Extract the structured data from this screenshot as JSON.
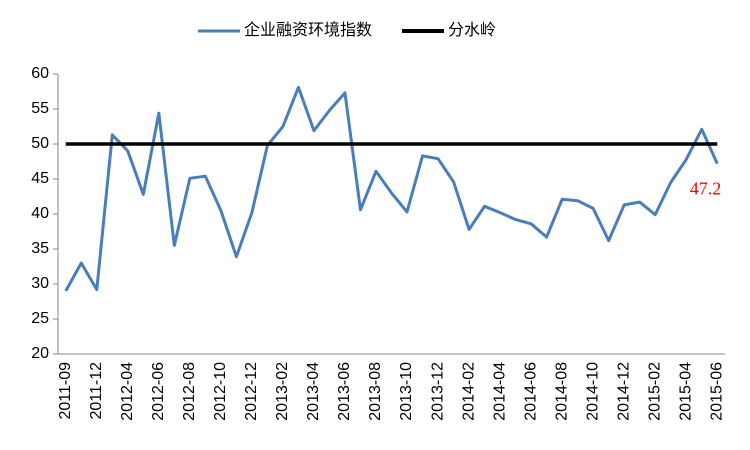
{
  "chart_data": {
    "type": "line",
    "categories": [
      "2011-09",
      null,
      "2011-12",
      null,
      "2012-04",
      null,
      "2012-06",
      null,
      "2012-08",
      null,
      "2012-10",
      null,
      "2012-12",
      null,
      "2013-02",
      null,
      "2013-04",
      null,
      "2013-06",
      null,
      "2013-08",
      null,
      "2013-10",
      null,
      "2013-12",
      null,
      "2014-02",
      null,
      "2014-04",
      null,
      "2014-06",
      null,
      "2014-08",
      null,
      "2014-10",
      null,
      "2014-12",
      null,
      "2015-02",
      null,
      "2015-04",
      null,
      "2015-06"
    ],
    "series": [
      {
        "name": "企业融资环境指数",
        "color": "#4a7ebb",
        "values": [
          29,
          33,
          29.2,
          51.3,
          49,
          42.8,
          54.4,
          35.5,
          45.1,
          45.4,
          40.5,
          33.9,
          40.2,
          49.8,
          52.5,
          58.1,
          51.9,
          54.8,
          57.3,
          40.6,
          46.1,
          43,
          40.3,
          48.3,
          47.9,
          44.6,
          37.8,
          41.1,
          40.2,
          39.2,
          38.6,
          36.7,
          42.1,
          41.9,
          40.8,
          36.2,
          41.3,
          41.7,
          39.9,
          44.5,
          47.8,
          52.1,
          47.2
        ]
      },
      {
        "name": "分水岭",
        "color": "#000000",
        "values": [
          50,
          50,
          50,
          50,
          50,
          50,
          50,
          50,
          50,
          50,
          50,
          50,
          50,
          50,
          50,
          50,
          50,
          50,
          50,
          50,
          50,
          50,
          50,
          50,
          50,
          50,
          50,
          50,
          50,
          50,
          50,
          50,
          50,
          50,
          50,
          50,
          50,
          50,
          50,
          50,
          50,
          50,
          50
        ]
      }
    ],
    "ylim": [
      20,
      60
    ],
    "yticks": [
      20,
      25,
      30,
      35,
      40,
      45,
      50,
      55,
      60
    ],
    "legend": "top",
    "label_color": "#ff0000"
  }
}
